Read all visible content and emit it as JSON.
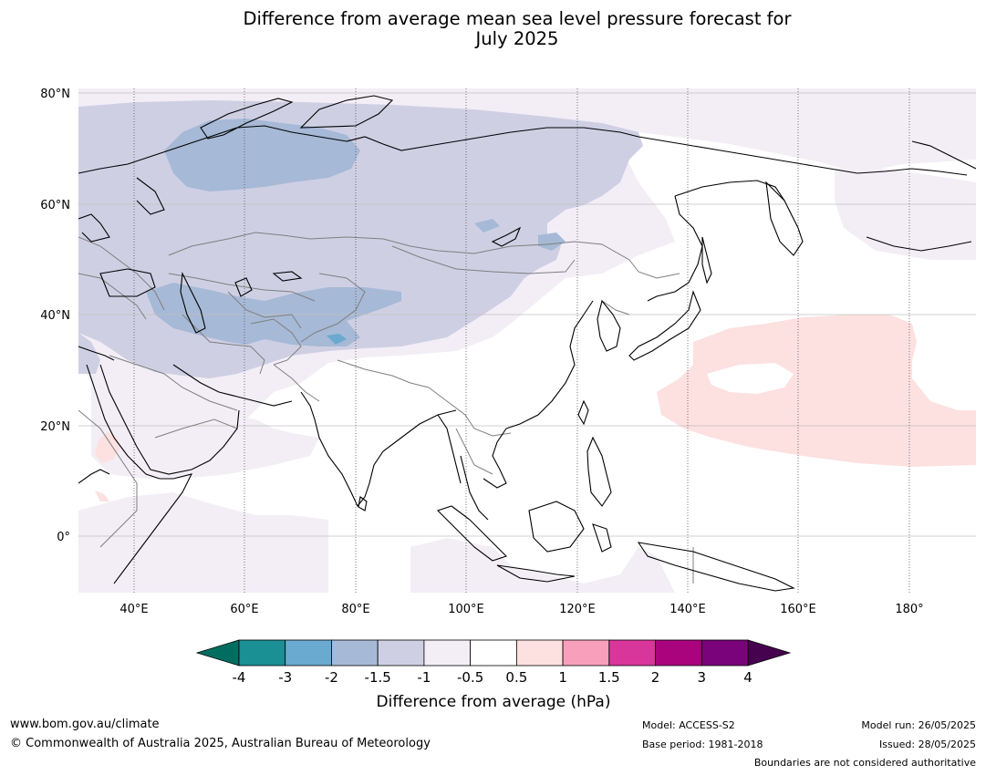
{
  "title_line1": "Difference from average mean sea level pressure forecast for",
  "title_line2": "July 2025",
  "map": {
    "lon_range": [
      30,
      192
    ],
    "lat_range": [
      -10,
      81
    ],
    "lat_ticks": [
      {
        "value": 80,
        "label": "80°N"
      },
      {
        "value": 60,
        "label": "60°N"
      },
      {
        "value": 40,
        "label": "40°N"
      },
      {
        "value": 20,
        "label": "20°N"
      },
      {
        "value": 0,
        "label": "0°"
      }
    ],
    "lon_ticks": [
      {
        "value": 40,
        "label": "40°E"
      },
      {
        "value": 60,
        "label": "60°E"
      },
      {
        "value": 80,
        "label": "80°E"
      },
      {
        "value": 100,
        "label": "100°E"
      },
      {
        "value": 120,
        "label": "120°E"
      },
      {
        "value": 140,
        "label": "140°E"
      },
      {
        "value": 160,
        "label": "160°E"
      },
      {
        "value": 180,
        "label": "180°"
      }
    ]
  },
  "colorbar": {
    "label": "Difference from average (hPa)",
    "tick_labels": [
      "-4",
      "-3",
      "-2",
      "-1.5",
      "-1",
      "-0.5",
      "0.5",
      "1",
      "1.5",
      "2",
      "3",
      "4"
    ],
    "colors": [
      "#1a8f94",
      "#6aa9d0",
      "#a6b9d6",
      "#cfcfe4",
      "#f3eef6",
      "#ffffff",
      "#fde0e0",
      "#f8a0bb",
      "#d9369b",
      "#a9037e",
      "#7a027a"
    ],
    "under_color": "#006d61",
    "over_color": "#47024f"
  },
  "legend_colors": {
    "neg_2": "#a6b9d6",
    "neg_1_5": "#cfcfe4",
    "neg_1": "#f3eef6",
    "pos_0_5": "#fde0e0",
    "coast": "#000000",
    "border": "#7f7f7f",
    "grid": "#c0c0c0"
  },
  "footer": {
    "url": "www.bom.gov.au/climate",
    "copyright": "© Commonwealth of Australia 2025, Australian Bureau of Meteorology",
    "model": "Model: ACCESS-S2",
    "base_period": "Base period: 1981-2018",
    "model_run": "Model run: 26/05/2025",
    "issued": "Issued: 28/05/2025",
    "boundaries": "Boundaries are not considered authoritative"
  }
}
